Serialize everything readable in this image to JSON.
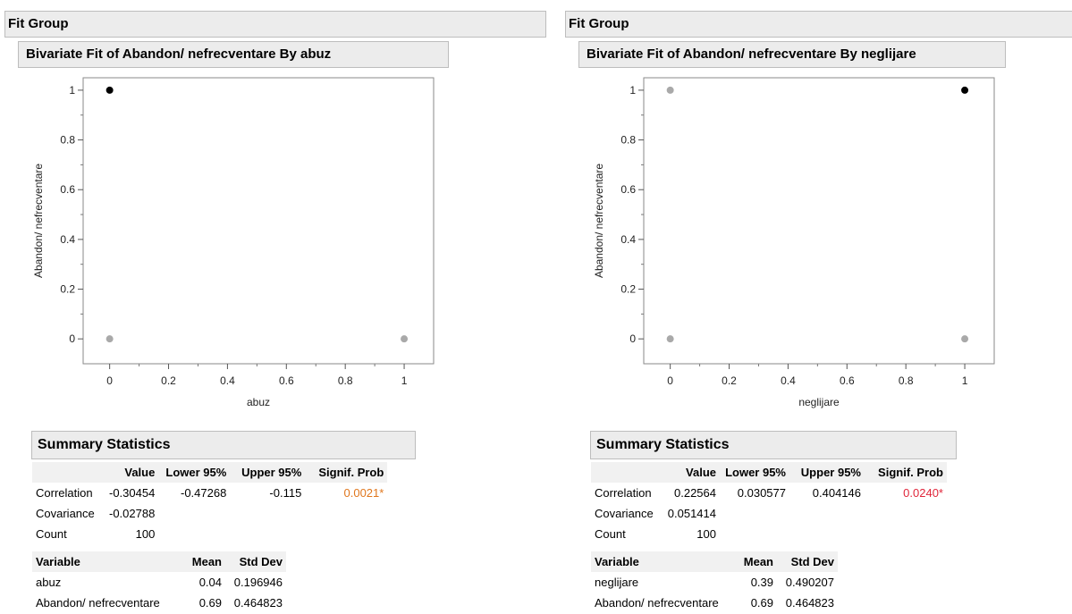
{
  "panels": [
    {
      "fit_group_title": "Fit Group",
      "bivariate_title": "Bivariate Fit of Abandon/ nefrecventare By abuz",
      "summary_title": "Summary Statistics",
      "stats_headers": [
        "",
        "Value",
        "Lower 95%",
        "Upper 95%",
        "Signif. Prob"
      ],
      "stats_rows": [
        {
          "label": "Correlation",
          "value": "-0.30454",
          "lower": "-0.47268",
          "upper": "-0.115",
          "prob": "0.0021*"
        },
        {
          "label": "Covariance",
          "value": "-0.02788",
          "lower": "",
          "upper": "",
          "prob": ""
        },
        {
          "label": "Count",
          "value": "100",
          "lower": "",
          "upper": "",
          "prob": ""
        }
      ],
      "prob_color": "#e0771e",
      "var_headers": [
        "Variable",
        "Mean",
        "Std Dev"
      ],
      "var_rows": [
        {
          "label": "abuz",
          "mean": "0.04",
          "sd": "0.196946"
        },
        {
          "label": "Abandon/ nefrecventare",
          "mean": "0.69",
          "sd": "0.464823"
        }
      ]
    },
    {
      "fit_group_title": "Fit Group",
      "bivariate_title": "Bivariate Fit of Abandon/ nefrecventare By neglijare",
      "summary_title": "Summary Statistics",
      "stats_headers": [
        "",
        "Value",
        "Lower 95%",
        "Upper 95%",
        "Signif. Prob"
      ],
      "stats_rows": [
        {
          "label": "Correlation",
          "value": "0.22564",
          "lower": "0.030577",
          "upper": "0.404146",
          "prob": "0.0240*"
        },
        {
          "label": "Covariance",
          "value": "0.051414",
          "lower": "",
          "upper": "",
          "prob": ""
        },
        {
          "label": "Count",
          "value": "100",
          "lower": "",
          "upper": "",
          "prob": ""
        }
      ],
      "prob_color": "#e0263a",
      "var_headers": [
        "Variable",
        "Mean",
        "Std Dev"
      ],
      "var_rows": [
        {
          "label": "neglijare",
          "mean": "0.39",
          "sd": "0.490207"
        },
        {
          "label": "Abandon/ nefrecventare",
          "mean": "0.69",
          "sd": "0.464823"
        }
      ]
    }
  ],
  "chart_data": [
    {
      "type": "scatter",
      "xlabel": "abuz",
      "ylabel": "Abandon/ nefrecventare",
      "xlim": [
        -0.09,
        1.1
      ],
      "ylim": [
        -0.1,
        1.05
      ],
      "xticks": [
        "0",
        "0.2",
        "0.4",
        "0.6",
        "0.8",
        "1"
      ],
      "yticks": [
        "0",
        "0.2",
        "0.4",
        "0.6",
        "0.8",
        "1"
      ],
      "points": [
        {
          "x": 0,
          "y": 1,
          "color": "#000000"
        },
        {
          "x": 0,
          "y": 0,
          "color": "#a9a9a9"
        },
        {
          "x": 1,
          "y": 0,
          "color": "#a9a9a9"
        }
      ]
    },
    {
      "type": "scatter",
      "xlabel": "neglijare",
      "ylabel": "Abandon/ nefrecventare",
      "xlim": [
        -0.09,
        1.1
      ],
      "ylim": [
        -0.1,
        1.05
      ],
      "xticks": [
        "0",
        "0.2",
        "0.4",
        "0.6",
        "0.8",
        "1"
      ],
      "yticks": [
        "0",
        "0.2",
        "0.4",
        "0.6",
        "0.8",
        "1"
      ],
      "points": [
        {
          "x": 0,
          "y": 1,
          "color": "#a9a9a9"
        },
        {
          "x": 1,
          "y": 1,
          "color": "#000000"
        },
        {
          "x": 0,
          "y": 0,
          "color": "#a9a9a9"
        },
        {
          "x": 1,
          "y": 0,
          "color": "#a9a9a9"
        }
      ]
    }
  ]
}
